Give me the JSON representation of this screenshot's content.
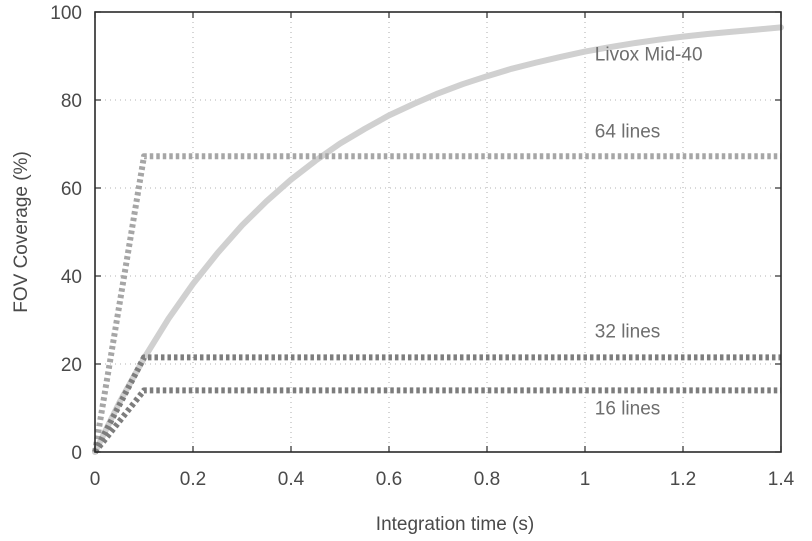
{
  "chart_data": {
    "type": "line",
    "title": "",
    "xlabel": "Integration time (s)",
    "ylabel": "FOV Coverage (%)",
    "xlim": [
      0,
      1.4
    ],
    "ylim": [
      0,
      100
    ],
    "x_ticks": [
      0,
      0.2,
      0.4,
      0.6,
      0.8,
      1,
      1.2,
      1.4
    ],
    "x_tick_labels": [
      "0",
      "0.2",
      "0.4",
      "0.6",
      "0.8",
      "1",
      "1.2",
      "1.4"
    ],
    "y_ticks": [
      0,
      20,
      40,
      60,
      80,
      100
    ],
    "y_tick_labels": [
      "0",
      "20",
      "40",
      "60",
      "80",
      "100"
    ],
    "grid": true,
    "legend": "none",
    "series": [
      {
        "name": "Livox Mid-40",
        "style": "solid",
        "color": "#d0d0d0",
        "x": [
          0,
          0.05,
          0.1,
          0.15,
          0.2,
          0.25,
          0.3,
          0.35,
          0.4,
          0.45,
          0.5,
          0.55,
          0.6,
          0.65,
          0.7,
          0.75,
          0.8,
          0.85,
          0.9,
          0.95,
          1.0,
          1.05,
          1.1,
          1.15,
          1.2,
          1.25,
          1.3,
          1.35,
          1.4
        ],
        "y": [
          0,
          11.3,
          21.3,
          30.3,
          38.2,
          45.2,
          51.5,
          57.0,
          61.9,
          66.2,
          70.1,
          73.4,
          76.5,
          79.1,
          81.5,
          83.6,
          85.4,
          87.1,
          88.5,
          89.8,
          91.0,
          92.0,
          92.9,
          93.7,
          94.4,
          95.0,
          95.5,
          96.0,
          96.5
        ]
      },
      {
        "name": "64 lines",
        "style": "dotted",
        "color": "#a6a6a6",
        "x": [
          0,
          0.1,
          1.4
        ],
        "y": [
          0,
          67.2,
          67.2
        ]
      },
      {
        "name": "32 lines",
        "style": "dotted",
        "color": "#7d7d7d",
        "x": [
          0,
          0.1,
          1.4
        ],
        "y": [
          0,
          21.5,
          21.5
        ]
      },
      {
        "name": "16 lines",
        "style": "dotted",
        "color": "#7d7d7d",
        "x": [
          0,
          0.1,
          1.4
        ],
        "y": [
          0,
          14.0,
          14.0
        ]
      }
    ],
    "annotations": [
      {
        "text": "Livox Mid-40",
        "x": 1.02,
        "y": 89
      },
      {
        "text": "64 lines",
        "x": 1.02,
        "y": 71.5
      },
      {
        "text": "32 lines",
        "x": 1.02,
        "y": 26
      },
      {
        "text": "16 lines",
        "x": 1.02,
        "y": 8.5
      }
    ]
  }
}
